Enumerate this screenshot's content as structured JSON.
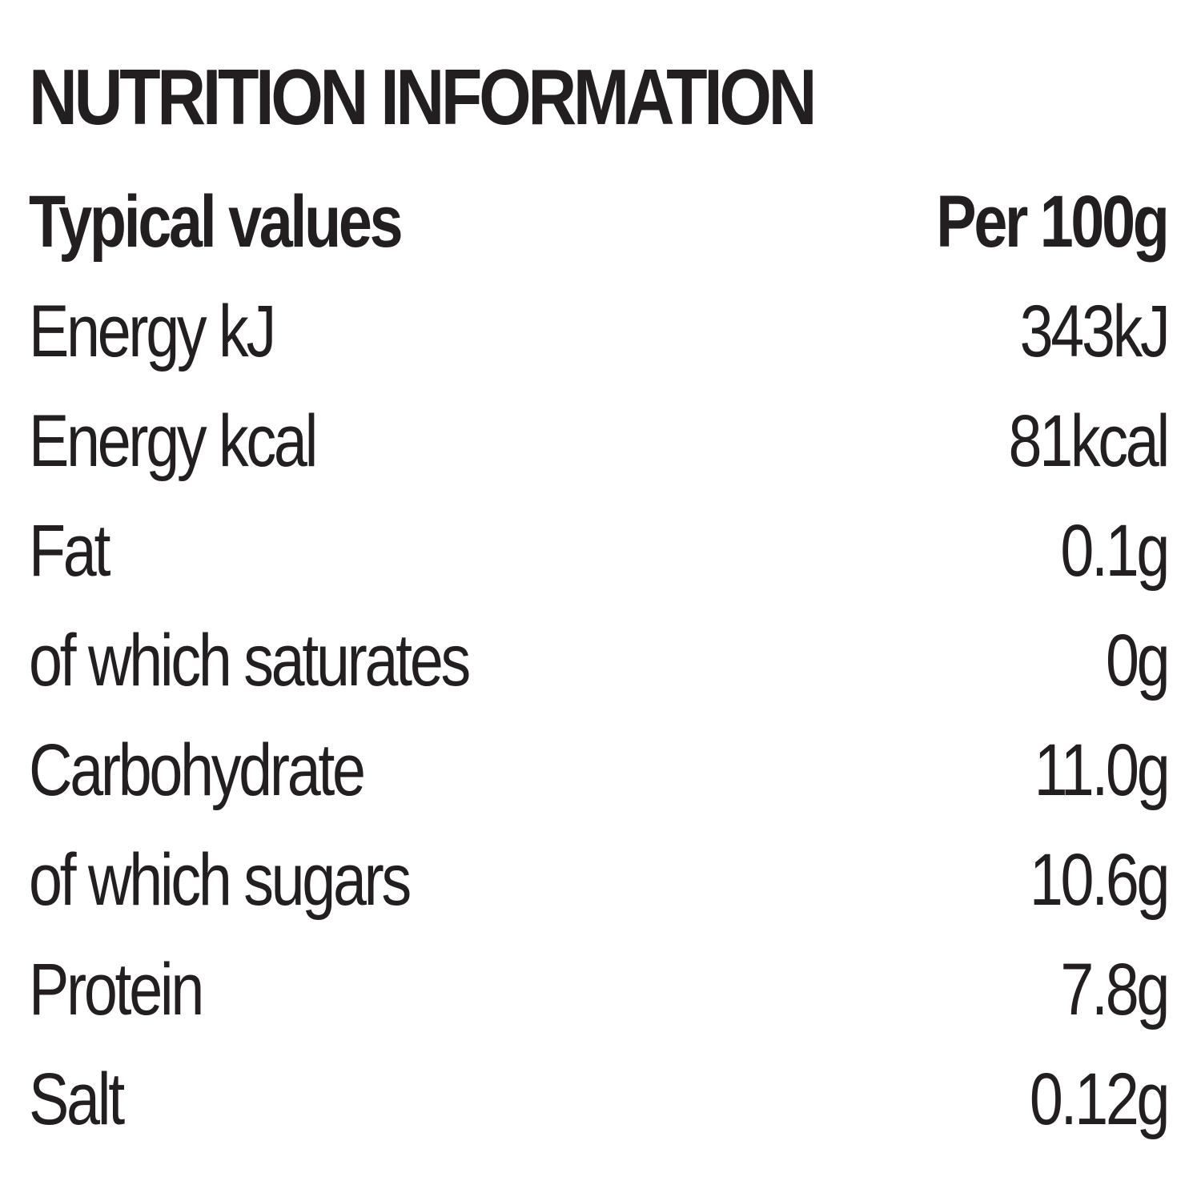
{
  "title": "NUTRITION INFORMATION",
  "header": {
    "name": "Typical values",
    "value": "Per 100g"
  },
  "rows": [
    {
      "name": "Energy kJ",
      "value": "343kJ"
    },
    {
      "name": "Energy kcal",
      "value": "81kcal"
    },
    {
      "name": "Fat",
      "value": "0.1g"
    },
    {
      "name": "of which saturates",
      "value": "0g"
    },
    {
      "name": "Carbohydrate",
      "value": "11.0g"
    },
    {
      "name": "of which sugars",
      "value": "10.6g"
    },
    {
      "name": "Protein",
      "value": "7.8g"
    },
    {
      "name": "Salt",
      "value": "0.12g"
    }
  ]
}
